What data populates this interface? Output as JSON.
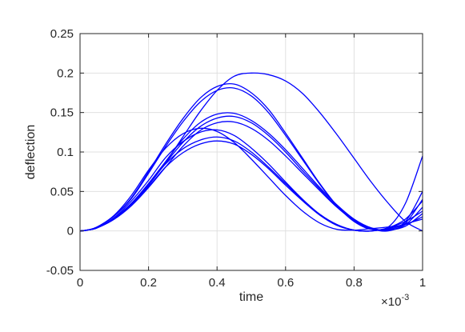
{
  "chart_data": {
    "type": "line",
    "title": "",
    "xlabel": "time",
    "ylabel": "deflection",
    "x_multiplier_base": "×10",
    "x_multiplier_exp": "-3",
    "xlim": [
      0,
      1
    ],
    "ylim": [
      -0.05,
      0.25
    ],
    "x_ticks": [
      0,
      0.2,
      0.4,
      0.6,
      0.8,
      1
    ],
    "x_tick_labels": [
      "0",
      "0.2",
      "0.4",
      "0.6",
      "0.8",
      "1"
    ],
    "y_ticks": [
      -0.05,
      0,
      0.05,
      0.1,
      0.15,
      0.2,
      0.25
    ],
    "y_tick_labels": [
      "-0.05",
      "0",
      "0.05",
      "0.1",
      "0.15",
      "0.2",
      "0.25"
    ],
    "grid": true,
    "line_color": "#0000ff",
    "series": [
      {
        "x": [
          0,
          0.02,
          0.05,
          0.1,
          0.15,
          0.2,
          0.25,
          0.3,
          0.35,
          0.4,
          0.45,
          0.5,
          0.55,
          0.6,
          0.65,
          0.7,
          0.75,
          0.8,
          0.85,
          0.9,
          0.95,
          1.0
        ],
        "values": [
          0,
          0.001,
          0.004,
          0.015,
          0.033,
          0.058,
          0.087,
          0.119,
          0.151,
          0.178,
          0.196,
          0.2,
          0.198,
          0.19,
          0.174,
          0.15,
          0.122,
          0.092,
          0.062,
          0.035,
          0.012,
          0.0
        ]
      },
      {
        "x": [
          0,
          0.02,
          0.05,
          0.1,
          0.15,
          0.2,
          0.25,
          0.3,
          0.35,
          0.4,
          0.45,
          0.5,
          0.55,
          0.6,
          0.65,
          0.7,
          0.75,
          0.8,
          0.85,
          0.9,
          0.95,
          1.0
        ],
        "values": [
          0,
          0.001,
          0.005,
          0.019,
          0.042,
          0.075,
          0.11,
          0.142,
          0.168,
          0.183,
          0.186,
          0.175,
          0.154,
          0.124,
          0.092,
          0.06,
          0.032,
          0.012,
          0.002,
          0.005,
          0.035,
          0.095
        ]
      },
      {
        "x": [
          0,
          0.02,
          0.05,
          0.1,
          0.15,
          0.2,
          0.25,
          0.3,
          0.35,
          0.4,
          0.45,
          0.5,
          0.55,
          0.6,
          0.65,
          0.7,
          0.75,
          0.8,
          0.85,
          0.9,
          0.95,
          1.0
        ],
        "values": [
          0,
          0.001,
          0.005,
          0.019,
          0.041,
          0.073,
          0.107,
          0.138,
          0.163,
          0.178,
          0.181,
          0.171,
          0.15,
          0.121,
          0.09,
          0.059,
          0.032,
          0.012,
          0.003,
          0.002,
          0.012,
          0.05
        ]
      },
      {
        "x": [
          0,
          0.02,
          0.05,
          0.1,
          0.15,
          0.2,
          0.25,
          0.3,
          0.35,
          0.4,
          0.45,
          0.5,
          0.55,
          0.6,
          0.65,
          0.7,
          0.75,
          0.8,
          0.85,
          0.9,
          0.95,
          1.0
        ],
        "values": [
          0,
          0.001,
          0.004,
          0.016,
          0.035,
          0.06,
          0.088,
          0.116,
          0.137,
          0.148,
          0.149,
          0.14,
          0.124,
          0.103,
          0.079,
          0.055,
          0.033,
          0.015,
          0.004,
          0.001,
          0.008,
          0.03
        ]
      },
      {
        "x": [
          0,
          0.02,
          0.05,
          0.1,
          0.15,
          0.2,
          0.25,
          0.3,
          0.35,
          0.4,
          0.45,
          0.5,
          0.55,
          0.6,
          0.65,
          0.7,
          0.75,
          0.8,
          0.85,
          0.9,
          0.95,
          1.0
        ],
        "values": [
          0,
          0.001,
          0.004,
          0.016,
          0.034,
          0.058,
          0.086,
          0.112,
          0.132,
          0.143,
          0.145,
          0.137,
          0.121,
          0.1,
          0.076,
          0.053,
          0.031,
          0.014,
          0.003,
          0.0,
          0.01,
          0.04
        ]
      },
      {
        "x": [
          0,
          0.02,
          0.05,
          0.1,
          0.15,
          0.2,
          0.25,
          0.3,
          0.35,
          0.4,
          0.45,
          0.5,
          0.55,
          0.6,
          0.65,
          0.7,
          0.75,
          0.8,
          0.85,
          0.9,
          0.95,
          1.0
        ],
        "values": [
          0,
          0.001,
          0.004,
          0.015,
          0.032,
          0.055,
          0.081,
          0.107,
          0.127,
          0.137,
          0.138,
          0.13,
          0.115,
          0.095,
          0.073,
          0.051,
          0.03,
          0.013,
          0.003,
          0.001,
          0.006,
          0.022
        ]
      },
      {
        "x": [
          0,
          0.02,
          0.05,
          0.1,
          0.15,
          0.2,
          0.25,
          0.3,
          0.35,
          0.4,
          0.45,
          0.5,
          0.55,
          0.6,
          0.65,
          0.7,
          0.75,
          0.8,
          0.85,
          0.9,
          0.95,
          1.0
        ],
        "values": [
          0,
          0.001,
          0.005,
          0.02,
          0.045,
          0.077,
          0.105,
          0.123,
          0.13,
          0.126,
          0.112,
          0.091,
          0.068,
          0.045,
          0.025,
          0.01,
          0.002,
          0.001,
          0.003,
          0.005,
          0.008,
          0.018
        ]
      },
      {
        "x": [
          0,
          0.02,
          0.05,
          0.1,
          0.15,
          0.2,
          0.25,
          0.3,
          0.35,
          0.4,
          0.45,
          0.5,
          0.55,
          0.6,
          0.65,
          0.7,
          0.75,
          0.8,
          0.85,
          0.9,
          0.95,
          1.0
        ],
        "values": [
          0,
          0.001,
          0.004,
          0.017,
          0.038,
          0.064,
          0.093,
          0.113,
          0.125,
          0.128,
          0.121,
          0.105,
          0.085,
          0.062,
          0.04,
          0.021,
          0.008,
          0.001,
          0.0,
          0.004,
          0.015,
          0.038
        ]
      },
      {
        "x": [
          0,
          0.02,
          0.05,
          0.1,
          0.15,
          0.2,
          0.25,
          0.3,
          0.35,
          0.4,
          0.45,
          0.5,
          0.55,
          0.6,
          0.65,
          0.7,
          0.75,
          0.8,
          0.85,
          0.9,
          0.95,
          1.0
        ],
        "values": [
          0,
          0.001,
          0.004,
          0.016,
          0.035,
          0.059,
          0.085,
          0.104,
          0.115,
          0.119,
          0.114,
          0.1,
          0.081,
          0.06,
          0.039,
          0.021,
          0.008,
          0.001,
          0.0,
          0.004,
          0.012,
          0.025
        ]
      },
      {
        "x": [
          0,
          0.02,
          0.05,
          0.1,
          0.15,
          0.2,
          0.25,
          0.3,
          0.35,
          0.4,
          0.45,
          0.5,
          0.55,
          0.6,
          0.65,
          0.7,
          0.75,
          0.8,
          0.85,
          0.9,
          0.95,
          1.0
        ],
        "values": [
          0,
          0.001,
          0.004,
          0.015,
          0.033,
          0.056,
          0.081,
          0.099,
          0.11,
          0.114,
          0.11,
          0.097,
          0.079,
          0.058,
          0.038,
          0.02,
          0.007,
          0.001,
          0.0,
          0.003,
          0.009,
          0.015
        ]
      }
    ]
  }
}
